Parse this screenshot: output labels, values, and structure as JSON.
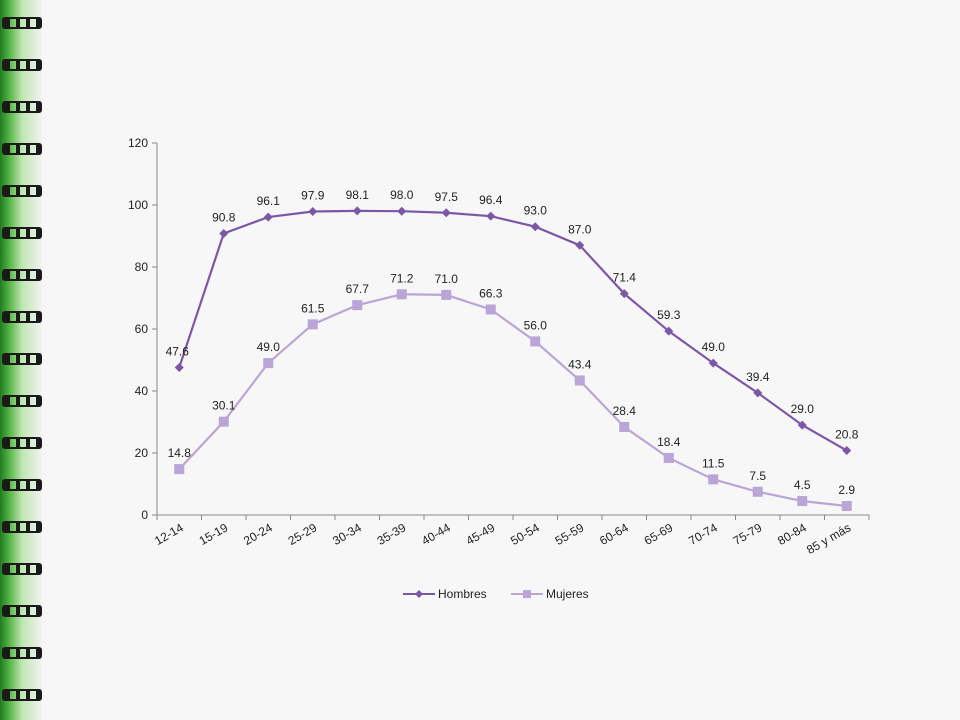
{
  "chart_data": {
    "type": "line",
    "title": "",
    "xlabel": "",
    "ylabel": "",
    "ylim": [
      0,
      120
    ],
    "yticks": [
      0,
      20,
      40,
      60,
      80,
      100,
      120
    ],
    "grid": false,
    "legend_position": "bottom",
    "categories": [
      "12-14",
      "15-19",
      "20-24",
      "25-29",
      "30-34",
      "35-39",
      "40-44",
      "45-49",
      "50-54",
      "55-59",
      "60-64",
      "65-69",
      "70-74",
      "75-79",
      "80-84",
      "85 y más"
    ],
    "series": [
      {
        "name": "Hombres",
        "marker": "diamond",
        "color": "#7b58a6",
        "values": [
          47.6,
          90.8,
          96.1,
          97.9,
          98.1,
          98.0,
          97.5,
          96.4,
          93.0,
          87.0,
          71.4,
          59.3,
          49.0,
          39.4,
          29.0,
          20.8
        ],
        "labels": [
          "47.6",
          "90.8",
          "96.1",
          "97.9",
          "98.1",
          "98.0",
          "97.5",
          "96.4",
          "93.0",
          "87.0",
          "71.4",
          "59.3",
          "49.0",
          "39.4",
          "29.0",
          "20.8"
        ]
      },
      {
        "name": "Mujeres",
        "marker": "square",
        "color": "#b9a5d6",
        "values": [
          14.8,
          30.1,
          49.0,
          61.5,
          67.7,
          71.2,
          71.0,
          66.3,
          56.0,
          43.4,
          28.4,
          18.4,
          11.5,
          7.5,
          4.5,
          2.9
        ],
        "labels": [
          "14.8",
          "30.1",
          "49.0",
          "61.5",
          "67.7",
          "71.2",
          "71.0",
          "66.3",
          "56.0",
          "43.4",
          "28.4",
          "18.4",
          "11.5",
          "7.5",
          "4.5",
          "2.9"
        ]
      }
    ]
  }
}
